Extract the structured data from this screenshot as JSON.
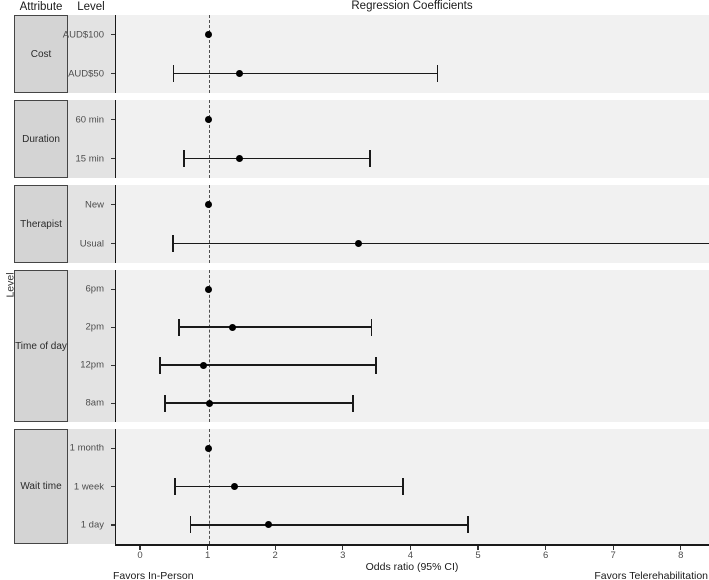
{
  "chart_data": {
    "type": "forest",
    "title": "Regression Coefficients",
    "column_headers": {
      "attribute": "Attribute",
      "level": "Level"
    },
    "ylabel": "Level",
    "xlabel": "Odds ratio (95% CI)",
    "footer": {
      "left": "Favors In-Person",
      "right": "Favors Telerehabilitation"
    },
    "x_ticks": [
      0,
      1,
      2,
      3,
      4,
      5,
      6,
      7,
      8
    ],
    "xlim": [
      -0.37,
      8.42
    ],
    "reference_line": 1,
    "legend": "none",
    "grid": "off",
    "groups": [
      {
        "attribute": "Cost",
        "rows": [
          {
            "level": "AUD$100",
            "or": 1.0,
            "reference": true
          },
          {
            "level": "AUD$50",
            "or": 1.45,
            "lo": 0.47,
            "hi": 4.4
          }
        ]
      },
      {
        "attribute": "Duration",
        "rows": [
          {
            "level": "60 min",
            "or": 1.0,
            "reference": true
          },
          {
            "level": "15 min",
            "or": 1.45,
            "lo": 0.62,
            "hi": 3.4
          }
        ]
      },
      {
        "attribute": "Therapist",
        "rows": [
          {
            "level": "New",
            "or": 1.0,
            "reference": true
          },
          {
            "level": "Usual",
            "or": 3.22,
            "lo": 0.46,
            "hi": null,
            "hi_clipped": true
          }
        ]
      },
      {
        "attribute": "Time of day",
        "rows": [
          {
            "level": "6pm",
            "or": 1.0,
            "reference": true
          },
          {
            "level": "2pm",
            "or": 1.35,
            "lo": 0.55,
            "hi": 3.42
          },
          {
            "level": "12pm",
            "or": 0.92,
            "lo": 0.27,
            "hi": 3.49
          },
          {
            "level": "8am",
            "or": 1.02,
            "lo": 0.34,
            "hi": 3.15
          }
        ]
      },
      {
        "attribute": "Wait time",
        "rows": [
          {
            "level": "1 month",
            "or": 1.0,
            "reference": true
          },
          {
            "level": "1 week",
            "or": 1.39,
            "lo": 0.49,
            "hi": 3.89
          },
          {
            "level": "1 day",
            "or": 1.88,
            "lo": 0.72,
            "hi": 4.85
          }
        ]
      }
    ],
    "colors": {
      "panel_bg": "#f1f1f1",
      "level_strip_bg": "#e3e3e3",
      "attribute_box_bg": "#d4d4d4",
      "attribute_box_border": "#454545",
      "line": "#1a1a1a",
      "dashed_reference": "#4f4f4f",
      "tick_text": "#4d4d4d"
    }
  }
}
